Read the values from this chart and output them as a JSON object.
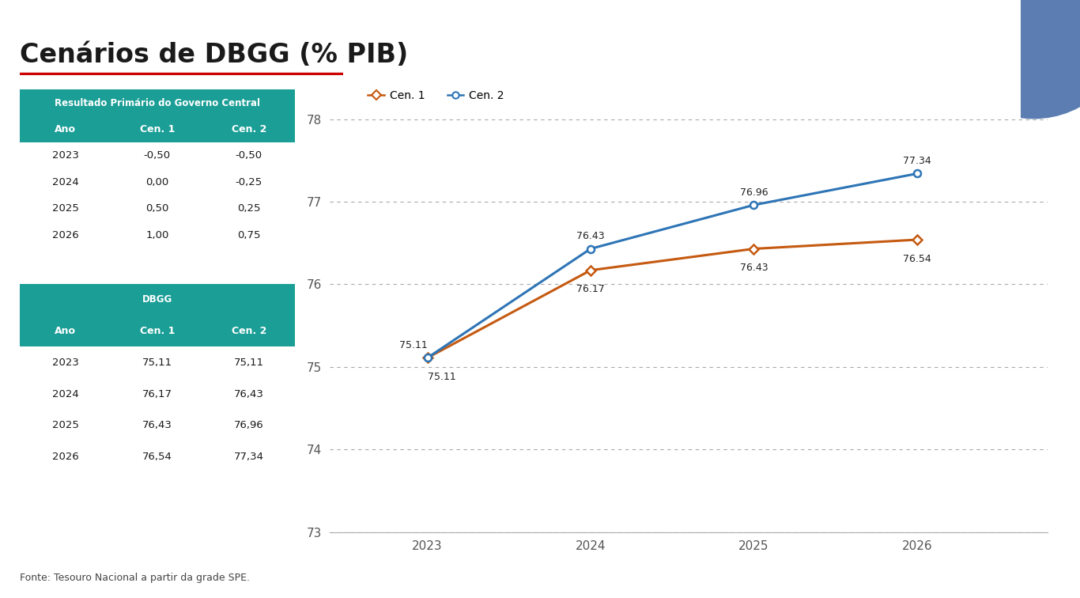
{
  "title": "Cenários de DBGG (% PIB)",
  "title_fontsize": 24,
  "title_color": "#1a1a1a",
  "underline_color": "#cc0000",
  "background_color": "#ffffff",
  "teal_color": "#1a9e96",
  "table1_title": "Resultado Primário do Governo Central",
  "table1_header": [
    "Ano",
    "Cen. 1",
    "Cen. 2"
  ],
  "table1_rows": [
    [
      "2023",
      "-0,50",
      "-0,50"
    ],
    [
      "2024",
      "0,00",
      "-0,25"
    ],
    [
      "2025",
      "0,50",
      "0,25"
    ],
    [
      "2026",
      "1,00",
      "0,75"
    ]
  ],
  "table2_title": "DBGG",
  "table2_header": [
    "Ano",
    "Cen. 1",
    "Cen. 2"
  ],
  "table2_rows": [
    [
      "2023",
      "75,11",
      "75,11"
    ],
    [
      "2024",
      "76,17",
      "76,43"
    ],
    [
      "2025",
      "76,43",
      "76,96"
    ],
    [
      "2026",
      "76,54",
      "77,34"
    ]
  ],
  "years": [
    2023,
    2024,
    2025,
    2026
  ],
  "cen1_values": [
    75.11,
    76.17,
    76.43,
    76.54
  ],
  "cen2_values": [
    75.11,
    76.43,
    76.96,
    77.34
  ],
  "cen1_label": "Cen. 1",
  "cen2_label": "Cen. 2",
  "cen1_color": "#c55a11",
  "cen2_color": "#2E75B6",
  "ylim": [
    73,
    78.5
  ],
  "yticks": [
    73,
    74,
    75,
    76,
    77,
    78
  ],
  "footnote": "Fonte: Tesouro Nacional a partir da grade SPE.",
  "data_labels_cen1": [
    "75.11",
    "76.17",
    "76.43",
    "76.54"
  ],
  "data_labels_cen2": [
    "75.11",
    "76.43",
    "76.96",
    "77.34"
  ],
  "circle_color": "#5B7DB1"
}
